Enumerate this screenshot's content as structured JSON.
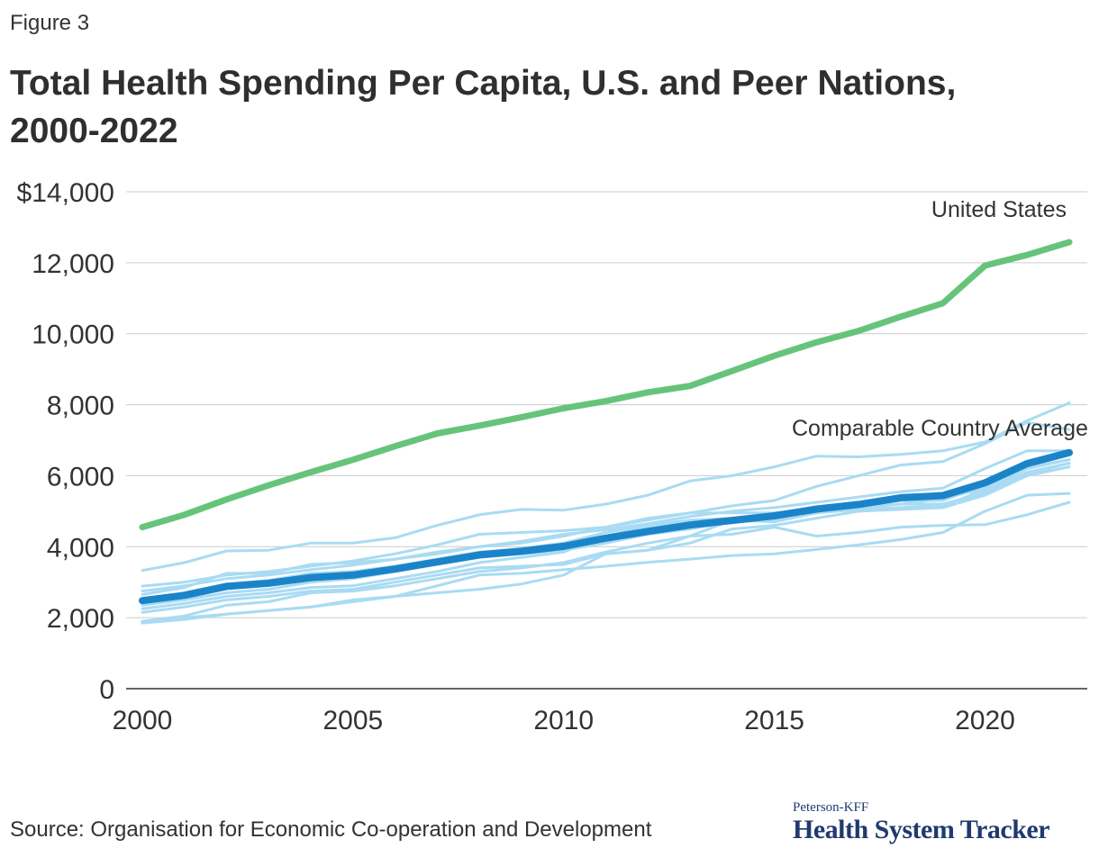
{
  "figure_label": "Figure 3",
  "title": "Total Health Spending Per Capita, U.S. and Peer Nations, 2000-2022",
  "source": "Source: Organisation for Economic Co-operation and Development",
  "brand": {
    "small": "Peterson-KFF",
    "big": "Health System Tracker"
  },
  "colors": {
    "us": "#66c47a",
    "average": "#1b84c9",
    "peers": "#a9dbf3",
    "grid": "#cccccc",
    "axis": "#333333"
  },
  "chart_data": {
    "type": "line",
    "title": "Total Health Spending Per Capita, U.S. and Peer Nations, 2000-2022",
    "xlabel": "",
    "ylabel": "",
    "xlim": [
      2000,
      2022
    ],
    "ylim": [
      0,
      14000
    ],
    "x_ticks": [
      2000,
      2005,
      2010,
      2015,
      2020
    ],
    "y_ticks": [
      0,
      2000,
      4000,
      6000,
      8000,
      10000,
      12000,
      14000
    ],
    "y_tick_labels": [
      "0",
      "2,000",
      "4,000",
      "6,000",
      "8,000",
      "10,000",
      "12,000",
      "$14,000"
    ],
    "grid": true,
    "x": [
      2000,
      2001,
      2002,
      2003,
      2004,
      2005,
      2006,
      2007,
      2008,
      2009,
      2010,
      2011,
      2012,
      2013,
      2014,
      2015,
      2016,
      2017,
      2018,
      2019,
      2020,
      2021,
      2022
    ],
    "series": [
      {
        "role": "peer",
        "values": [
          3330,
          3550,
          3880,
          3900,
          4100,
          4100,
          4250,
          4600,
          4900,
          5050,
          5030,
          5200,
          5450,
          5850,
          6000,
          6250,
          6550,
          6530,
          6600,
          6700,
          6950,
          7550,
          8050
        ]
      },
      {
        "role": "peer",
        "values": [
          2890,
          3000,
          3200,
          3300,
          3450,
          3600,
          3800,
          4050,
          4350,
          4400,
          4450,
          4550,
          4750,
          4950,
          5150,
          5300,
          5700,
          6000,
          6300,
          6400,
          6900,
          7500,
          7300
        ]
      },
      {
        "role": "peer",
        "values": [
          2750,
          2900,
          3100,
          3200,
          3350,
          3480,
          3650,
          3850,
          4000,
          4150,
          4350,
          4480,
          4650,
          4850,
          5000,
          5100,
          5250,
          5400,
          5550,
          5650,
          6200,
          6700,
          6700
        ]
      },
      {
        "role": "peer",
        "values": [
          2650,
          2850,
          3250,
          3250,
          3500,
          3550,
          3650,
          3800,
          4000,
          4100,
          4300,
          4550,
          4800,
          4950,
          4950,
          4950,
          5050,
          5150,
          5300,
          5300,
          5750,
          6350,
          6600
        ]
      },
      {
        "role": "peer",
        "values": [
          2500,
          2700,
          2950,
          3050,
          3250,
          3300,
          3450,
          3650,
          3850,
          3950,
          4100,
          4400,
          4600,
          4750,
          4800,
          4850,
          5050,
          5200,
          5400,
          5500,
          5550,
          6200,
          6450
        ]
      },
      {
        "role": "peer",
        "values": [
          2350,
          2500,
          2700,
          2800,
          3000,
          3100,
          3300,
          3500,
          3700,
          3800,
          3900,
          4100,
          4350,
          4500,
          4700,
          4750,
          4950,
          5150,
          5200,
          5200,
          5500,
          6100,
          6350
        ]
      },
      {
        "role": "peer",
        "values": [
          2250,
          2400,
          2600,
          2700,
          2850,
          2900,
          3100,
          3300,
          3550,
          3700,
          3850,
          4300,
          4550,
          4700,
          4800,
          4900,
          5000,
          5100,
          5200,
          5350,
          5650,
          6250,
          6450
        ]
      },
      {
        "role": "peer",
        "values": [
          2150,
          2300,
          2500,
          2600,
          2750,
          2800,
          3000,
          3200,
          3400,
          3450,
          3500,
          3800,
          3900,
          4300,
          4350,
          4550,
          4300,
          4400,
          4550,
          4600,
          4620,
          4900,
          5250
        ]
      },
      {
        "role": "peer",
        "values": [
          1900,
          2050,
          2350,
          2450,
          2700,
          2750,
          2900,
          3100,
          3300,
          3400,
          3550,
          3850,
          4100,
          4300,
          4750,
          4700,
          4950,
          5050,
          5100,
          5150,
          5600,
          6050,
          6350
        ]
      },
      {
        "role": "peer",
        "values": [
          1850,
          1950,
          2100,
          2200,
          2300,
          2500,
          2600,
          2700,
          2800,
          2950,
          3200,
          3800,
          3900,
          4100,
          4500,
          4600,
          4800,
          5000,
          5050,
          5100,
          5450,
          6000,
          6250
        ]
      },
      {
        "role": "peer",
        "values": [
          1880,
          2000,
          2100,
          2200,
          2300,
          2450,
          2600,
          2900,
          3200,
          3250,
          3350,
          3450,
          3560,
          3650,
          3750,
          3800,
          3920,
          4050,
          4200,
          4400,
          5000,
          5450,
          5500
        ]
      },
      {
        "role": "us",
        "name": "United States",
        "values": [
          4550,
          4900,
          5330,
          5730,
          6100,
          6450,
          6830,
          7190,
          7410,
          7650,
          7900,
          8100,
          8350,
          8530,
          8950,
          9380,
          9760,
          10080,
          10480,
          10860,
          11920,
          12220,
          12580
        ]
      },
      {
        "role": "average",
        "name": "Comparable Country Average",
        "values": [
          2480,
          2630,
          2880,
          2970,
          3130,
          3200,
          3370,
          3570,
          3770,
          3870,
          4010,
          4240,
          4430,
          4610,
          4740,
          4870,
          5060,
          5190,
          5380,
          5440,
          5800,
          6340,
          6650
        ]
      }
    ]
  }
}
